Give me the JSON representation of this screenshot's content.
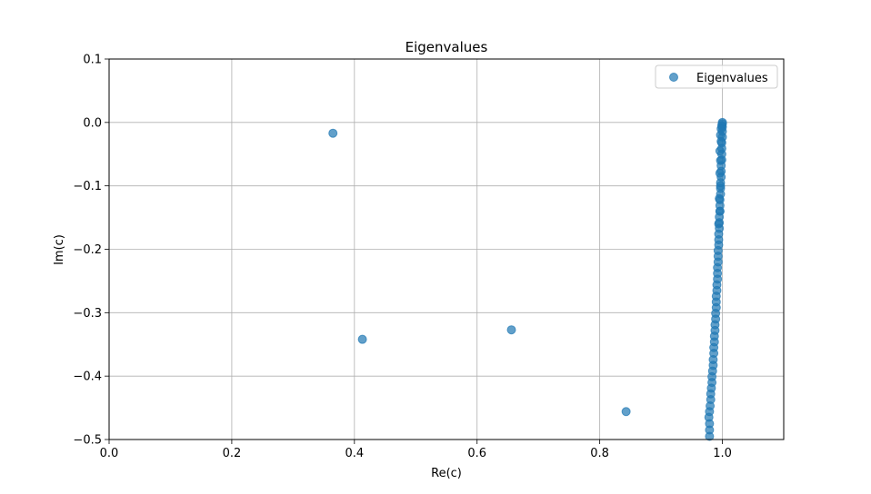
{
  "chart_data": {
    "type": "scatter",
    "title": "Eigenvalues",
    "xlabel": "Re(c)",
    "ylabel": "Im(c)",
    "xlim": [
      0.0,
      1.1
    ],
    "ylim": [
      -0.5,
      0.1
    ],
    "xticks": [
      "0.0",
      "0.2",
      "0.4",
      "0.6",
      "0.8",
      "1.0"
    ],
    "xtick_values": [
      0.0,
      0.2,
      0.4,
      0.6,
      0.8,
      1.0
    ],
    "yticks": [
      "0.1",
      "0.0",
      "−0.1",
      "−0.2",
      "−0.3",
      "−0.4",
      "−0.5"
    ],
    "ytick_values": [
      0.1,
      0.0,
      -0.1,
      -0.2,
      -0.3,
      -0.4,
      -0.5
    ],
    "grid": true,
    "legend_position": "top-right",
    "colors": {
      "marker": "#1f77b4"
    },
    "series": [
      {
        "name": "Eigenvalues",
        "points": [
          [
            0.365,
            -0.017
          ],
          [
            0.413,
            -0.342
          ],
          [
            0.656,
            -0.327
          ],
          [
            0.843,
            -0.456
          ],
          [
            0.979,
            -0.495
          ],
          [
            0.979,
            -0.485
          ],
          [
            0.979,
            -0.475
          ],
          [
            0.978,
            -0.465
          ],
          [
            0.979,
            -0.456
          ],
          [
            0.98,
            -0.447
          ],
          [
            0.981,
            -0.437
          ],
          [
            0.981,
            -0.428
          ],
          [
            0.982,
            -0.419
          ],
          [
            0.983,
            -0.41
          ],
          [
            0.983,
            -0.401
          ],
          [
            0.984,
            -0.392
          ],
          [
            0.985,
            -0.383
          ],
          [
            0.985,
            -0.374
          ],
          [
            0.986,
            -0.364
          ],
          [
            0.986,
            -0.355
          ],
          [
            0.987,
            -0.346
          ],
          [
            0.987,
            -0.337
          ],
          [
            0.988,
            -0.328
          ],
          [
            0.988,
            -0.319
          ],
          [
            0.989,
            -0.31
          ],
          [
            0.989,
            -0.301
          ],
          [
            0.99,
            -0.292
          ],
          [
            0.99,
            -0.283
          ],
          [
            0.99,
            -0.274
          ],
          [
            0.991,
            -0.265
          ],
          [
            0.991,
            -0.256
          ],
          [
            0.992,
            -0.247
          ],
          [
            0.992,
            -0.238
          ],
          [
            0.992,
            -0.229
          ],
          [
            0.993,
            -0.22
          ],
          [
            0.993,
            -0.211
          ],
          [
            0.993,
            -0.202
          ],
          [
            0.994,
            -0.193
          ],
          [
            0.994,
            -0.185
          ],
          [
            0.994,
            -0.176
          ],
          [
            0.995,
            -0.167
          ],
          [
            0.995,
            -0.158
          ],
          [
            0.995,
            -0.149
          ],
          [
            0.996,
            -0.14
          ],
          [
            0.996,
            -0.131
          ],
          [
            0.996,
            -0.122
          ],
          [
            0.997,
            -0.113
          ],
          [
            0.997,
            -0.104
          ],
          [
            0.997,
            -0.095
          ],
          [
            0.998,
            -0.086
          ],
          [
            0.998,
            -0.077
          ],
          [
            0.998,
            -0.068
          ],
          [
            0.999,
            -0.059
          ],
          [
            0.999,
            -0.05
          ],
          [
            0.999,
            -0.041
          ],
          [
            0.999,
            -0.032
          ],
          [
            1.0,
            -0.023
          ],
          [
            1.0,
            -0.014
          ],
          [
            1.0,
            -0.007
          ],
          [
            1.0,
            -0.002
          ],
          [
            1.0,
            0.0
          ],
          [
            0.999,
            -0.005
          ],
          [
            0.998,
            -0.01
          ],
          [
            0.997,
            -0.02
          ],
          [
            0.998,
            -0.03
          ],
          [
            0.996,
            -0.045
          ],
          [
            0.997,
            -0.06
          ],
          [
            0.996,
            -0.08
          ],
          [
            0.997,
            -0.1
          ],
          [
            0.995,
            -0.12
          ],
          [
            0.996,
            -0.14
          ],
          [
            0.994,
            -0.16
          ]
        ]
      }
    ]
  }
}
